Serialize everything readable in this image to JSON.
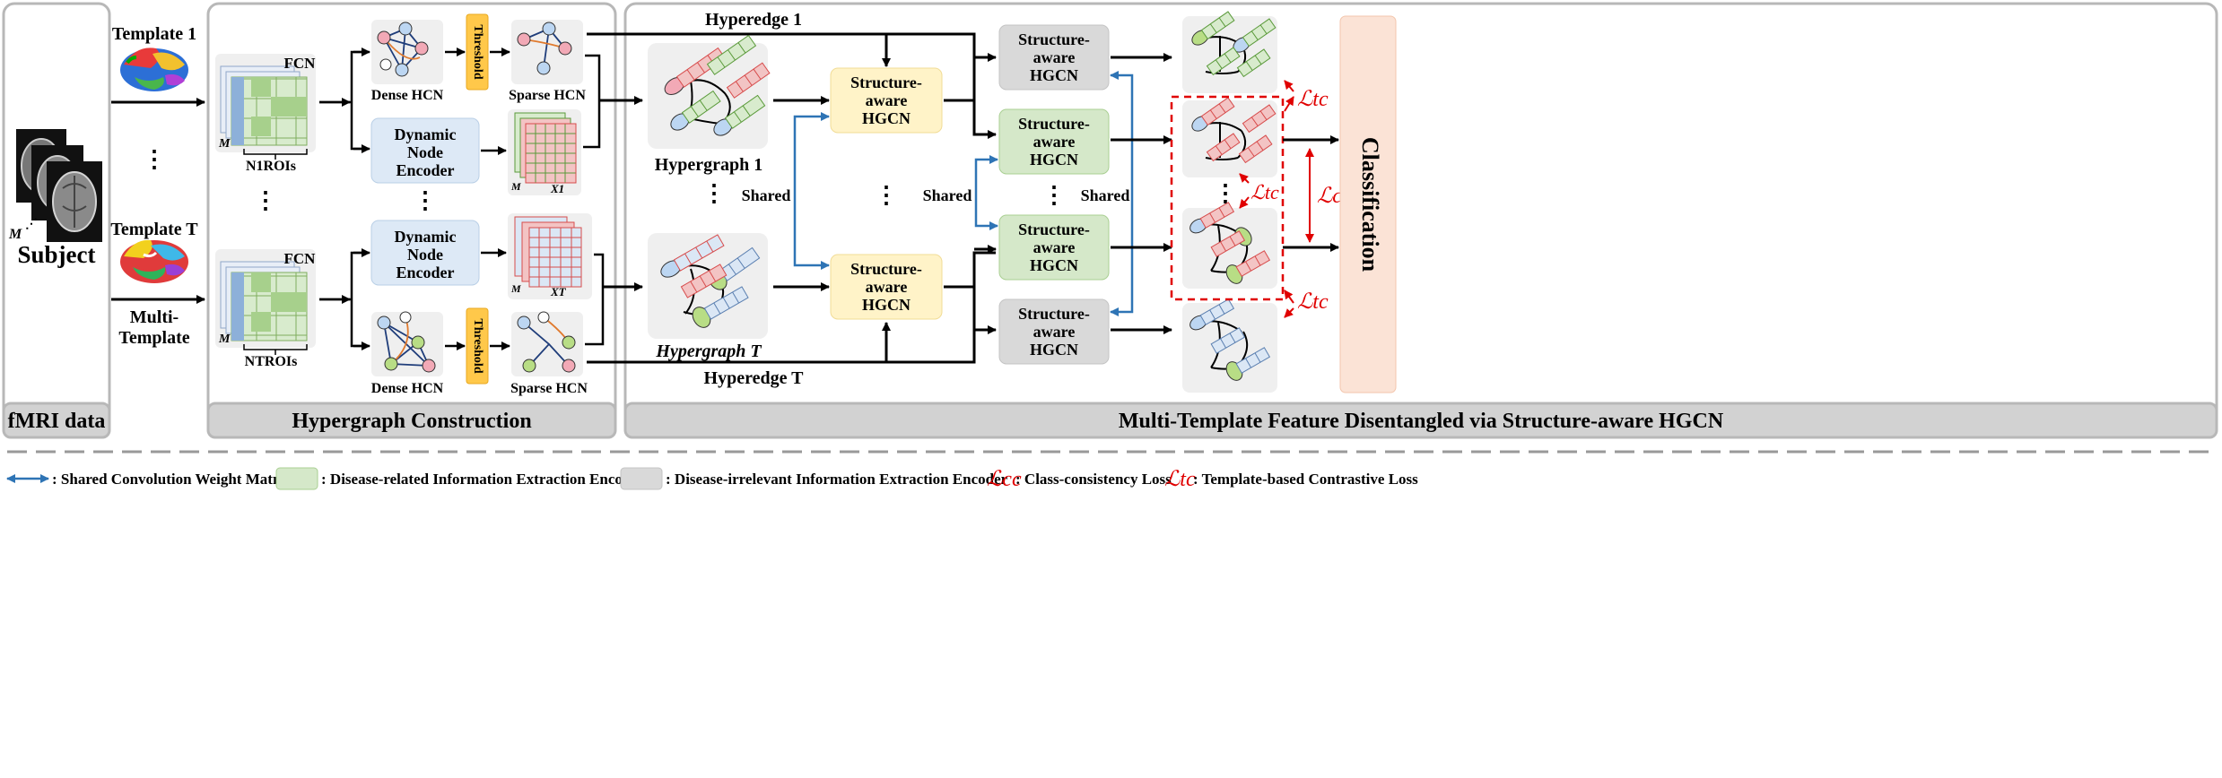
{
  "panels": {
    "fmri": "fMRI data",
    "construction": "Hypergraph Construction",
    "disentangle": "Multi-Template Feature Disentangled via Structure-aware HGCN"
  },
  "fmri": {
    "subject": "Subject",
    "m_label": "M",
    "template1": "Template 1",
    "template_t": "Template T",
    "multi_template_1": "Multi-",
    "multi_template_2": "Template",
    "ellipsis": "⋮"
  },
  "construction": {
    "fcn": "FCN",
    "m_label": "M",
    "n1_rois": "N1ROIs",
    "nt_rois": "NTROIs",
    "dense_hcn": "Dense HCN",
    "sparse_hcn": "Sparse HCN",
    "threshold": "Threshold",
    "encoder_1": "Dynamic",
    "encoder_2": "Node",
    "encoder_3": "Encoder",
    "x1": "X1",
    "xt": "XT",
    "ellipsis": "⋮"
  },
  "disentangle": {
    "hyperedge_1": "Hyperedge 1",
    "hyperedge_t": "Hyperedge T",
    "hypergraph_1": "Hypergraph 1",
    "hypergraph_t": "Hypergraph T",
    "shared": "Shared",
    "block_1": "Structure-",
    "block_2": "aware",
    "block_3": "HGCN",
    "classification": "Classification",
    "l_tc": "ℒtc",
    "l_cc": "ℒcc",
    "ellipsis": "⋮"
  },
  "legend": {
    "shared_weight": ": Shared Convolution Weight Matrix",
    "disease_related": ": Disease-related Information Extraction Encoder",
    "disease_irrelevant": ": Disease-irrelevant Information Extraction Encoder",
    "cc_loss": ": Class-consistency Loss",
    "tc_loss": ": Template-based Contrastive Loss",
    "l_cc": "ℒcc",
    "l_tc": "ℒtc"
  },
  "colors": {
    "panel_border": "#b8b8b8",
    "panel_header": "#d2d2d2",
    "blue_box": "#dde9f6",
    "yellow_box": "#fff3c8",
    "green_box": "#d5e8c9",
    "gray_box": "#d9d9d9",
    "classification_box": "#fbe3d6",
    "threshold_box": "#ffc84a",
    "shared_arrow": "#2e74b5",
    "loss_red": "#e00000"
  }
}
